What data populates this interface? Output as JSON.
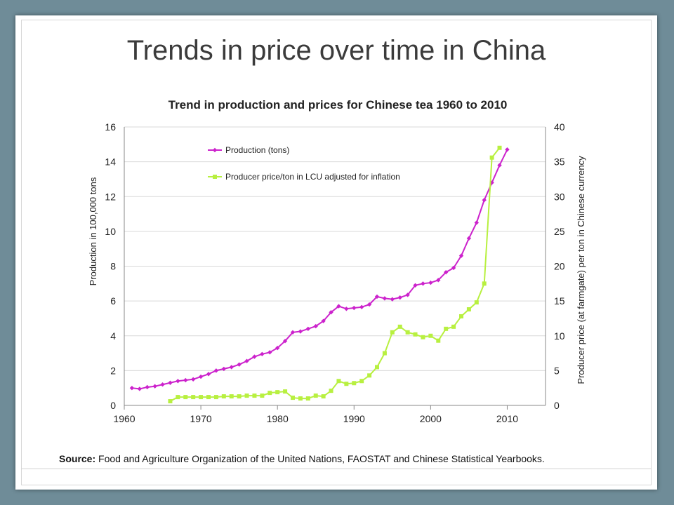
{
  "slide": {
    "title": "Trends in price over time in China",
    "source_label": "Source:",
    "source_text": " Food and Agriculture Organization of the United Nations, FAOSTAT and Chinese Statistical Yearbooks."
  },
  "colors": {
    "background": "#6f8c98",
    "production": "#cc22cc",
    "price": "#b8f040"
  },
  "chart_data": {
    "type": "line",
    "title": "Trend in production and prices for Chinese tea 1960 to 2010",
    "xlabel": "",
    "ylabel": "Production in 100,000 tons",
    "y2label": "Producer price (at farmgate) per ton in Chinese currency",
    "xlim": [
      1960,
      2015
    ],
    "ylim": [
      0,
      16
    ],
    "y2lim": [
      0,
      40
    ],
    "x_ticks": [
      1960,
      1970,
      1980,
      1990,
      2000,
      2010
    ],
    "y_ticks": [
      0,
      2,
      4,
      6,
      8,
      10,
      12,
      14,
      16
    ],
    "y2_ticks": [
      0,
      5,
      10,
      15,
      20,
      25,
      30,
      35,
      40
    ],
    "grid": "horizontal",
    "legend_position": "top-left",
    "series": [
      {
        "name": "Production (tons)",
        "axis": "left",
        "marker": "diamond",
        "x": [
          1961,
          1962,
          1963,
          1964,
          1965,
          1966,
          1967,
          1968,
          1969,
          1970,
          1971,
          1972,
          1973,
          1974,
          1975,
          1976,
          1977,
          1978,
          1979,
          1980,
          1981,
          1982,
          1983,
          1984,
          1985,
          1986,
          1987,
          1988,
          1989,
          1990,
          1991,
          1992,
          1993,
          1994,
          1995,
          1996,
          1997,
          1998,
          1999,
          2000,
          2001,
          2002,
          2003,
          2004,
          2005,
          2006,
          2007,
          2008,
          2009,
          2010
        ],
        "values": [
          1.0,
          0.95,
          1.05,
          1.1,
          1.2,
          1.3,
          1.4,
          1.45,
          1.5,
          1.65,
          1.8,
          2.0,
          2.1,
          2.2,
          2.35,
          2.55,
          2.8,
          2.95,
          3.05,
          3.3,
          3.7,
          4.2,
          4.25,
          4.4,
          4.55,
          4.85,
          5.35,
          5.7,
          5.55,
          5.6,
          5.65,
          5.8,
          6.25,
          6.15,
          6.1,
          6.2,
          6.35,
          6.9,
          7.0,
          7.05,
          7.2,
          7.65,
          7.9,
          8.6,
          9.6,
          10.5,
          11.8,
          12.8,
          13.8,
          14.7
        ]
      },
      {
        "name": "Producer price/ton in LCU adjusted for inflation",
        "axis": "right",
        "marker": "square",
        "x": [
          1966,
          1967,
          1968,
          1969,
          1970,
          1971,
          1972,
          1973,
          1974,
          1975,
          1976,
          1977,
          1978,
          1979,
          1980,
          1981,
          1982,
          1983,
          1984,
          1985,
          1986,
          1987,
          1988,
          1989,
          1990,
          1991,
          1992,
          1993,
          1994,
          1995,
          1996,
          1997,
          1998,
          1999,
          2000,
          2001,
          2002,
          2003,
          2004,
          2005,
          2006,
          2007,
          2008,
          2009
        ],
        "values": [
          0.6,
          1.2,
          1.2,
          1.2,
          1.2,
          1.2,
          1.2,
          1.3,
          1.3,
          1.3,
          1.4,
          1.4,
          1.4,
          1.8,
          1.9,
          2.0,
          1.1,
          1.0,
          1.0,
          1.4,
          1.3,
          2.1,
          3.5,
          3.1,
          3.2,
          3.5,
          4.3,
          5.5,
          7.5,
          10.5,
          11.3,
          10.5,
          10.2,
          9.8,
          10.0,
          9.3,
          11.0,
          11.3,
          12.8,
          13.8,
          14.8,
          17.5,
          35.6,
          37.0
        ]
      }
    ]
  }
}
